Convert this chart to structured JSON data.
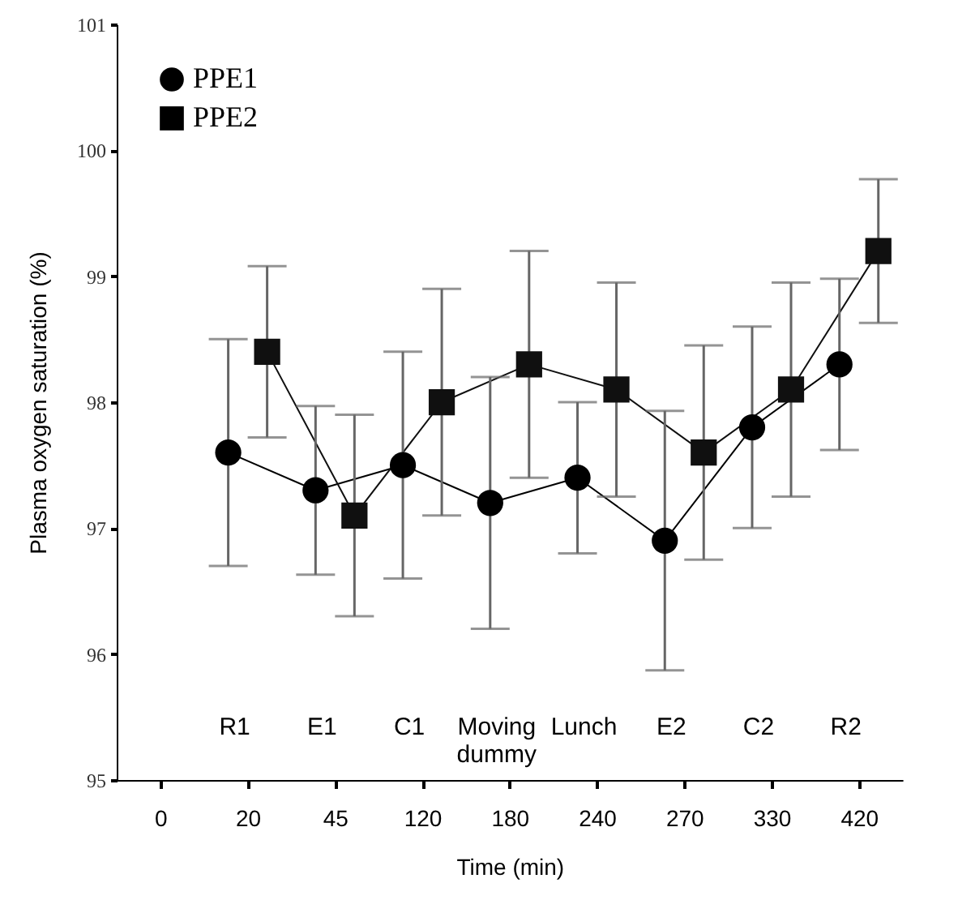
{
  "chart_data": {
    "type": "line",
    "xlabel": "Time (min)",
    "ylabel": "Plasma oxygen saturation (%)",
    "categories": [
      "0",
      "20",
      "45",
      "120",
      "180",
      "240",
      "270",
      "330",
      "420"
    ],
    "ylim": [
      95,
      101
    ],
    "yticks": [
      95,
      96,
      97,
      98,
      99,
      100,
      101
    ],
    "legend": "top left",
    "series": [
      {
        "name": "PPE1",
        "color": "#000000",
        "marker": "circle",
        "values": [
          null,
          97.6,
          97.3,
          97.5,
          97.2,
          97.4,
          96.9,
          97.8,
          98.3
        ],
        "errors": [
          null,
          0.9,
          0.67,
          0.9,
          1.0,
          0.6,
          1.03,
          0.8,
          0.68
        ]
      },
      {
        "name": "PPE2",
        "color": "#101010",
        "marker": "square",
        "values": [
          null,
          98.4,
          97.1,
          98.0,
          98.3,
          98.1,
          97.6,
          98.1,
          99.2
        ],
        "errors": [
          null,
          0.68,
          0.8,
          0.9,
          0.9,
          0.85,
          0.85,
          0.85,
          0.57
        ]
      }
    ],
    "annotations": [
      "R1",
      "E1",
      "C1",
      "Moving dummy",
      "Lunch",
      "E2",
      "C2",
      "R2"
    ]
  }
}
